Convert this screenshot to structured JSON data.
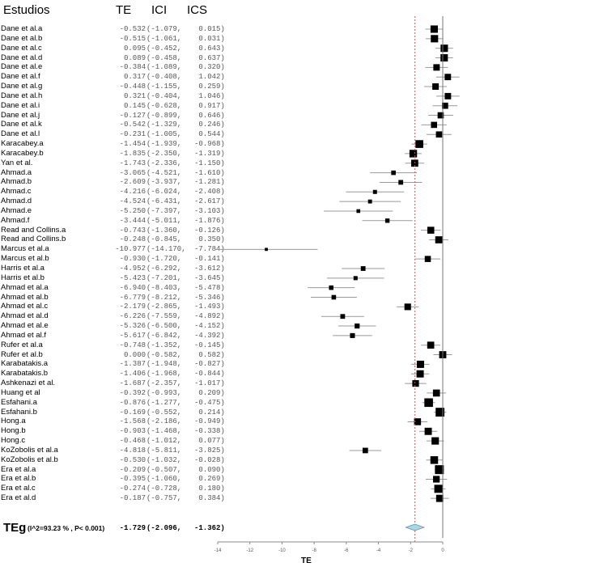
{
  "header": {
    "study": "Estudios",
    "te": "TE",
    "ici": "ICI",
    "ics": "ICS"
  },
  "overall": {
    "label": "TEg",
    "stats": "(I^2=93.23 % , P< 0.001)",
    "te": "-1.729",
    "ici": "(-2.096,",
    "ics": "-1.362)"
  },
  "axis": {
    "label": "TE",
    "ticks": [
      "-14",
      "-12",
      "-10",
      "-8",
      "-6",
      "-4",
      "-2",
      "0"
    ]
  },
  "colors": {
    "ref_line": "#e05050",
    "diamond": "#a8d8e8",
    "ci_line": "#999999",
    "marker": "#000000"
  },
  "chart_data": {
    "type": "forest",
    "title": "",
    "xlabel": "TE",
    "xlim": [
      -14,
      0
    ],
    "reference_line": -1.729,
    "columns": [
      "Estudios",
      "TE",
      "ICI",
      "ICS"
    ],
    "studies": [
      {
        "name": "Dane et al.a",
        "te": -0.532,
        "ici": -1.079,
        "ics": 0.015
      },
      {
        "name": "Dane et al.b",
        "te": -0.515,
        "ici": -1.061,
        "ics": 0.031
      },
      {
        "name": "Dane et al.c",
        "te": 0.095,
        "ici": -0.452,
        "ics": 0.643
      },
      {
        "name": "Dane et al.d",
        "te": 0.089,
        "ici": -0.458,
        "ics": 0.637
      },
      {
        "name": "Dane et al.e",
        "te": -0.384,
        "ici": -1.089,
        "ics": 0.32
      },
      {
        "name": "Dane et al.f",
        "te": 0.317,
        "ici": -0.408,
        "ics": 1.042
      },
      {
        "name": "Dane et al.g",
        "te": -0.448,
        "ici": -1.155,
        "ics": 0.259
      },
      {
        "name": "Dane et al.h",
        "te": 0.321,
        "ici": -0.404,
        "ics": 1.046
      },
      {
        "name": "Dane et al.i",
        "te": 0.145,
        "ici": -0.628,
        "ics": 0.917
      },
      {
        "name": "Dane et al.j",
        "te": -0.127,
        "ici": -0.899,
        "ics": 0.646
      },
      {
        "name": "Dane et al.k",
        "te": -0.542,
        "ici": -1.329,
        "ics": 0.246
      },
      {
        "name": "Dane et al.l",
        "te": -0.231,
        "ici": -1.005,
        "ics": 0.544
      },
      {
        "name": "Karacabey.a",
        "te": -1.454,
        "ici": -1.939,
        "ics": -0.968
      },
      {
        "name": "Karacabey.b",
        "te": -1.835,
        "ici": -2.35,
        "ics": -1.319
      },
      {
        "name": "Yan et al.",
        "te": -1.743,
        "ici": -2.336,
        "ics": -1.15
      },
      {
        "name": "Ahmad.a",
        "te": -3.065,
        "ici": -4.521,
        "ics": -1.61
      },
      {
        "name": "Ahmad.b",
        "te": -2.609,
        "ici": -3.937,
        "ics": -1.281
      },
      {
        "name": "Ahmad.c",
        "te": -4.216,
        "ici": -6.024,
        "ics": -2.408
      },
      {
        "name": "Ahmad.d",
        "te": -4.524,
        "ici": -6.431,
        "ics": -2.617
      },
      {
        "name": "Ahmad.e",
        "te": -5.25,
        "ici": -7.397,
        "ics": -3.103
      },
      {
        "name": "Ahmad.f",
        "te": -3.444,
        "ici": -5.011,
        "ics": -1.876
      },
      {
        "name": "Read and Collins.a",
        "te": -0.743,
        "ici": -1.36,
        "ics": -0.126
      },
      {
        "name": "Read and Collins.b",
        "te": -0.248,
        "ici": -0.845,
        "ics": 0.35
      },
      {
        "name": "Marcus et al.a",
        "te": -10.977,
        "ici": -14.17,
        "ics": -7.784
      },
      {
        "name": "Marcus et al.b",
        "te": -0.93,
        "ici": -1.72,
        "ics": -0.141
      },
      {
        "name": "Harris et al.a",
        "te": -4.952,
        "ici": -6.292,
        "ics": -3.612
      },
      {
        "name": "Harris et al.b",
        "te": -5.423,
        "ici": -7.201,
        "ics": -3.645
      },
      {
        "name": "Ahmad et al.a",
        "te": -6.94,
        "ici": -8.403,
        "ics": -5.478
      },
      {
        "name": "Ahmad et al.b",
        "te": -6.779,
        "ici": -8.212,
        "ics": -5.346
      },
      {
        "name": "Ahmad et al.c",
        "te": -2.179,
        "ici": -2.865,
        "ics": -1.493
      },
      {
        "name": "Ahmad et al.d",
        "te": -6.226,
        "ici": -7.559,
        "ics": -4.892
      },
      {
        "name": "Ahmad et al.e",
        "te": -5.326,
        "ici": -6.5,
        "ics": -4.152
      },
      {
        "name": "Ahmad et al.f",
        "te": -5.617,
        "ici": -6.842,
        "ics": -4.392
      },
      {
        "name": "Rufer et al.a",
        "te": -0.748,
        "ici": -1.352,
        "ics": -0.145
      },
      {
        "name": "Rufer et al.b",
        "te": 0.0,
        "ici": -0.582,
        "ics": 0.582
      },
      {
        "name": "Karabatakis.a",
        "te": -1.387,
        "ici": -1.948,
        "ics": -0.827
      },
      {
        "name": "Karabatakis.b",
        "te": -1.406,
        "ici": -1.968,
        "ics": -0.844
      },
      {
        "name": "Ashkenazi et al.",
        "te": -1.687,
        "ici": -2.357,
        "ics": -1.017
      },
      {
        "name": "Huang et al",
        "te": -0.392,
        "ici": -0.993,
        "ics": 0.209
      },
      {
        "name": "Esfahani.a",
        "te": -0.876,
        "ici": -1.277,
        "ics": -0.475
      },
      {
        "name": "Esfahani.b",
        "te": -0.169,
        "ici": -0.552,
        "ics": 0.214
      },
      {
        "name": "Hong.a",
        "te": -1.568,
        "ici": -2.186,
        "ics": -0.949
      },
      {
        "name": "Hong.b",
        "te": -0.903,
        "ici": -1.468,
        "ics": -0.338
      },
      {
        "name": "Hong.c",
        "te": -0.468,
        "ici": -1.012,
        "ics": 0.077
      },
      {
        "name": "KoZobolis et al.a",
        "te": -4.818,
        "ici": -5.811,
        "ics": -3.825
      },
      {
        "name": "KoZobolis et al.b",
        "te": -0.53,
        "ici": -1.032,
        "ics": -0.028
      },
      {
        "name": "Era et al.a",
        "te": -0.209,
        "ici": -0.507,
        "ics": 0.09
      },
      {
        "name": "Era et al.b",
        "te": -0.395,
        "ici": -1.06,
        "ics": 0.269
      },
      {
        "name": "Era et al.c",
        "te": -0.274,
        "ici": -0.728,
        "ics": 0.18
      },
      {
        "name": "Era et al.d",
        "te": -0.187,
        "ici": -0.757,
        "ics": 0.384
      }
    ],
    "summary": {
      "label": "TEg",
      "te": -1.729,
      "ici": -2.096,
      "ics": -1.362,
      "I2": "93.23 %",
      "p": "P< 0.001"
    }
  }
}
